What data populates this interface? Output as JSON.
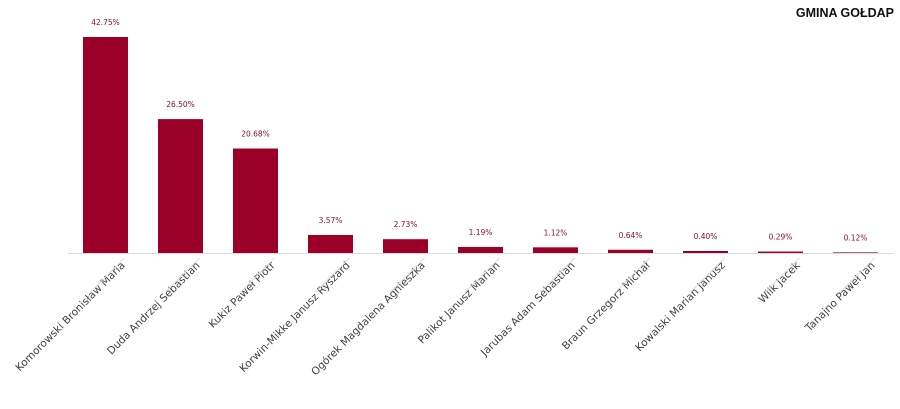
{
  "chart_data": {
    "type": "bar",
    "title": "GMINA GOŁDAP",
    "categories": [
      "Komorowski Bronisław Maria",
      "Duda Andrzej Sebastian",
      "Kukiz Paweł Piotr",
      "Korwin-Mikke Janusz Ryszard",
      "Ogórek Magdalena Agnieszka",
      "Palikot Janusz Marian",
      "Jarubas Adam Sebastian",
      "Braun Grzegorz Michał",
      "Kowalski Marian Janusz",
      "Wilk Jacek",
      "Tanajno Paweł Jan"
    ],
    "values": [
      42.75,
      26.5,
      20.68,
      3.57,
      2.73,
      1.19,
      1.12,
      0.64,
      0.4,
      0.29,
      0.12
    ],
    "data_labels": [
      "42.75%",
      "26.50%",
      "20.68%",
      "3.57%",
      "2.73%",
      "1.19%",
      "1.12%",
      "0.64%",
      "0.40%",
      "0.29%",
      "0.12%"
    ],
    "ylim": [
      0,
      45
    ],
    "grid": false,
    "legend": "none",
    "bar_color": "#9b0028",
    "label_color": "#8e0f2c"
  }
}
